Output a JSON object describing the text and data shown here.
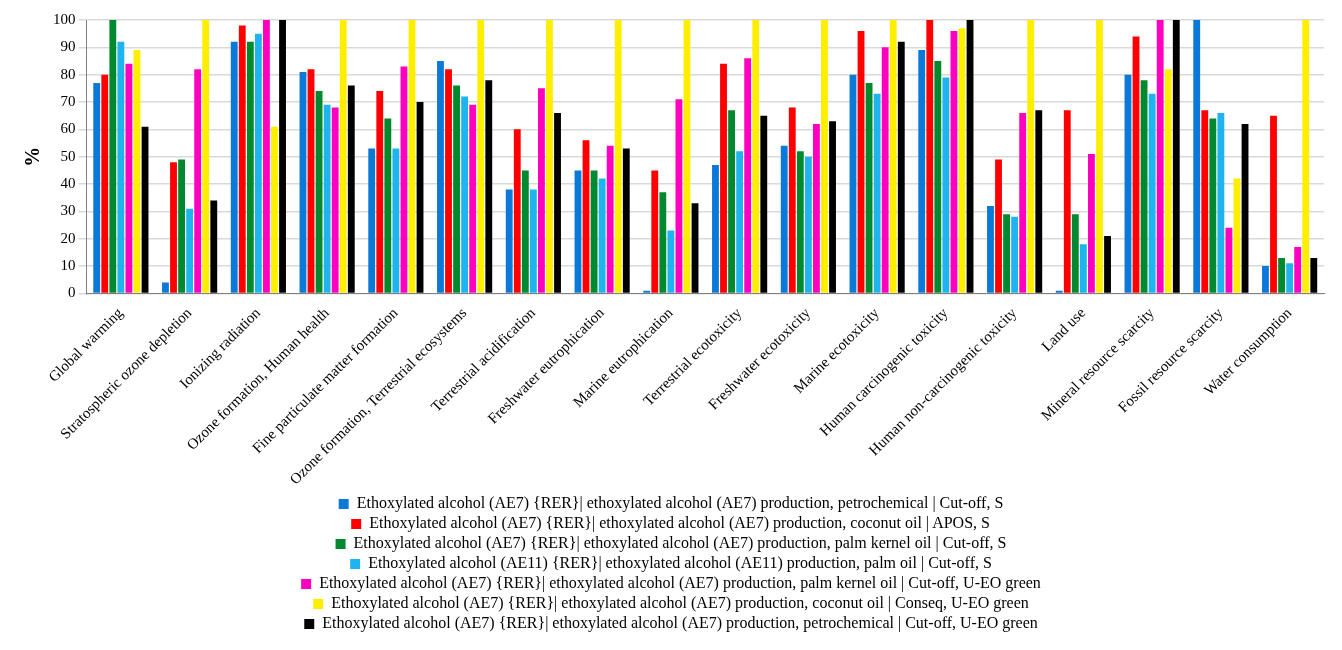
{
  "chart_data": {
    "type": "bar",
    "ylabel": "%",
    "categories": [
      "Global warming",
      "Stratospheric ozone depletion",
      "Ionizing radiation",
      "Ozone formation, Human health",
      "Fine particulate matter formation",
      "Ozone formation, Terrestrial ecosystems",
      "Terrestrial acidification",
      "Freshwater eutrophication",
      "Marine eutrophication",
      "Terrestrial ecotoxicity",
      "Freshwater ecotoxicity",
      "Marine ecotoxicity",
      "Human carcinogenic toxicity",
      "Human non-carcinogenic toxicity",
      "Land use",
      "Mineral resource scarcity",
      "Fossil resource scarcity",
      "Water consumption"
    ],
    "series": [
      {
        "name": "Ethoxylated alcohol (AE7) {RER}| ethoxylated alcohol (AE7) production, petrochemical | Cut-off, S",
        "color": "#0b79d8",
        "values": [
          77,
          4,
          92,
          81,
          53,
          85,
          38,
          45,
          1,
          47,
          54,
          80,
          89,
          32,
          1,
          80,
          100,
          10
        ]
      },
      {
        "name": "Ethoxylated alcohol (AE7) {RER}| ethoxylated alcohol (AE7) production, coconut oil | APOS, S",
        "color": "#ff0000",
        "values": [
          80,
          48,
          98,
          82,
          74,
          82,
          60,
          56,
          45,
          84,
          68,
          96,
          100,
          49,
          67,
          94,
          67,
          65
        ]
      },
      {
        "name": "Ethoxylated alcohol (AE7) {RER}| ethoxylated alcohol (AE7) production, palm kernel oil | Cut-off, S",
        "color": "#00892e",
        "values": [
          100,
          49,
          92,
          74,
          64,
          76,
          45,
          45,
          37,
          67,
          52,
          77,
          85,
          29,
          29,
          78,
          64,
          13
        ]
      },
      {
        "name": "Ethoxylated alcohol (AE11) {RER}| ethoxylated alcohol (AE11) production, palm oil | Cut-off, S",
        "color": "#1fb4f0",
        "values": [
          92,
          31,
          95,
          69,
          53,
          72,
          38,
          42,
          23,
          52,
          50,
          73,
          79,
          28,
          18,
          73,
          66,
          11
        ]
      },
      {
        "name": "Ethoxylated alcohol (AE7) {RER}| ethoxylated alcohol (AE7) production, palm kernel oil | Cut-off, U-EO green",
        "color": "#ff00c0",
        "values": [
          84,
          82,
          100,
          68,
          83,
          69,
          75,
          54,
          71,
          86,
          62,
          90,
          96,
          66,
          51,
          100,
          24,
          17
        ]
      },
      {
        "name": "Ethoxylated alcohol (AE7) {RER}| ethoxylated alcohol (AE7) production, coconut oil | Conseq, U-EO green",
        "color": "#ffee00",
        "values": [
          89,
          100,
          61,
          100,
          100,
          100,
          100,
          100,
          100,
          100,
          100,
          100,
          97,
          100,
          100,
          82,
          42,
          100
        ]
      },
      {
        "name": "Ethoxylated alcohol (AE7) {RER}| ethoxylated alcohol (AE7) production, petrochemical | Cut-off, U-EO green",
        "color": "#000000",
        "values": [
          61,
          34,
          100,
          76,
          70,
          78,
          66,
          53,
          33,
          65,
          63,
          92,
          100,
          67,
          21,
          100,
          62,
          13
        ]
      }
    ],
    "ylim": [
      0,
      100
    ],
    "yticks": [
      0,
      10,
      20,
      30,
      40,
      50,
      60,
      70,
      80,
      90,
      100
    ],
    "grid": "y",
    "legend": "bottom"
  }
}
